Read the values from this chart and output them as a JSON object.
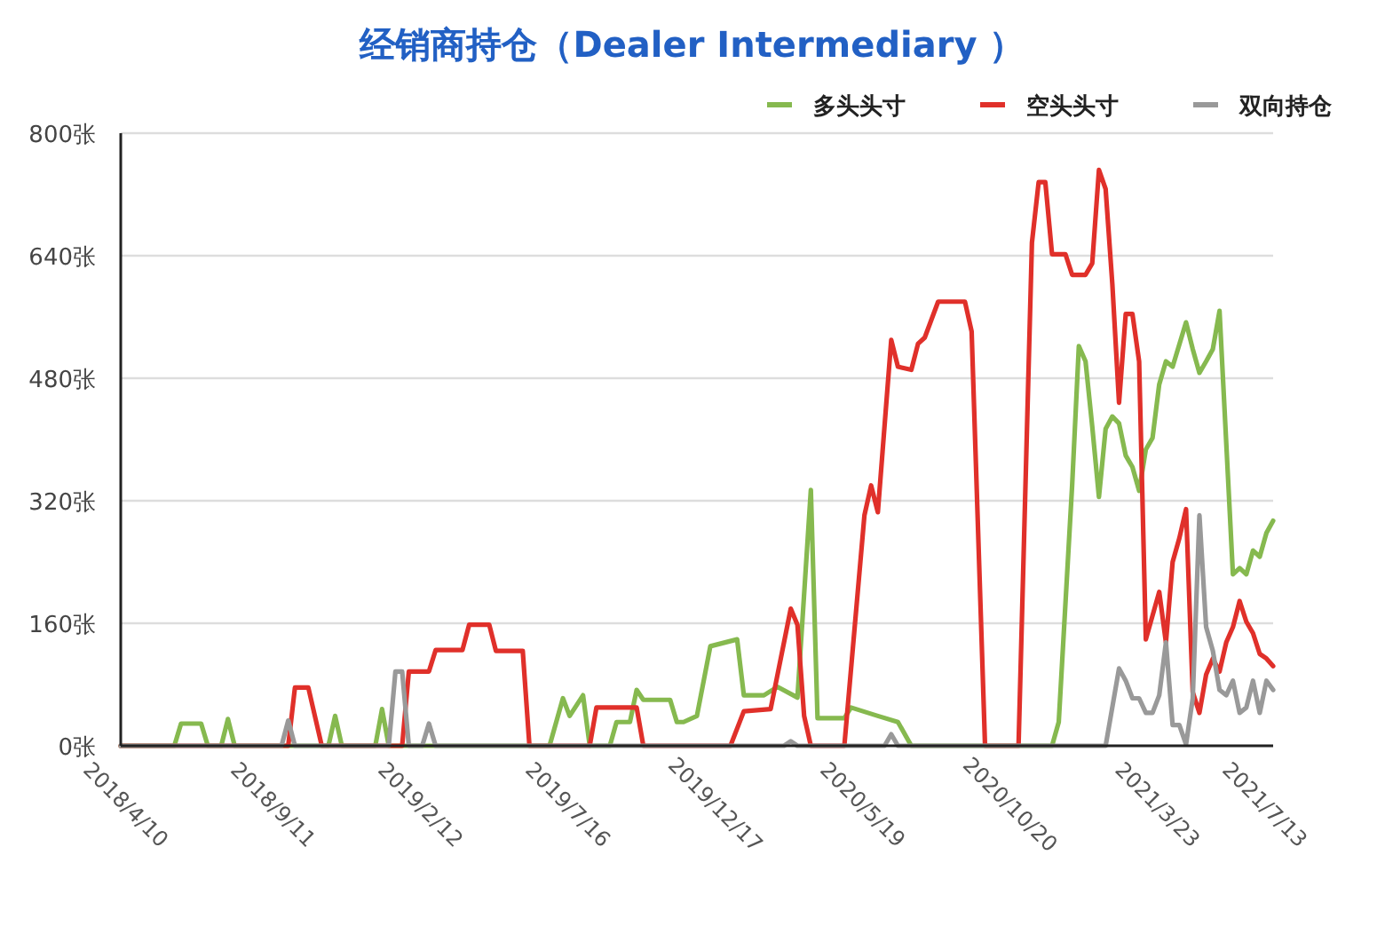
{
  "chart_data": {
    "type": "line",
    "title": "经销商持仓（Dealer Intermediary ）",
    "xlim": [
      "2018-04-10",
      "2021-07-27"
    ],
    "xticks": [
      {
        "value": "2018-04-10",
        "label": "2018/4/10"
      },
      {
        "value": "2018-09-11",
        "label": "2018/9/11"
      },
      {
        "value": "2019-02-12",
        "label": "2019/2/12"
      },
      {
        "value": "2019-07-16",
        "label": "2019/7/16"
      },
      {
        "value": "2019-12-17",
        "label": "2019/12/17"
      },
      {
        "value": "2020-05-19",
        "label": "2020/5/19"
      },
      {
        "value": "2020-10-20",
        "label": "2020/10/20"
      },
      {
        "value": "2021-03-23",
        "label": "2021/3/23"
      },
      {
        "value": "2021-07-13",
        "label": "2021/7/13"
      }
    ],
    "ylim": [
      0,
      800
    ],
    "yticks": [
      {
        "value": 0,
        "label": "0张"
      },
      {
        "value": 160,
        "label": "160张"
      },
      {
        "value": 320,
        "label": "320张"
      },
      {
        "value": 480,
        "label": "480张"
      },
      {
        "value": 640,
        "label": "640张"
      },
      {
        "value": 800,
        "label": "800张"
      }
    ],
    "grid": "y",
    "legend": "top right",
    "series": [
      {
        "name": "多头头寸",
        "color": "#86b94f",
        "x": [
          "2018-04-10",
          "2018-06-05",
          "2018-06-12",
          "2018-07-03",
          "2018-07-10",
          "2018-07-24",
          "2018-07-31",
          "2018-08-07",
          "2018-11-13",
          "2018-11-20",
          "2018-11-27",
          "2019-01-01",
          "2019-01-08",
          "2019-01-15",
          "2019-07-02",
          "2019-07-16",
          "2019-07-23",
          "2019-08-06",
          "2019-08-13",
          "2019-09-03",
          "2019-09-10",
          "2019-09-24",
          "2019-10-01",
          "2019-10-08",
          "2019-11-05",
          "2019-11-12",
          "2019-11-19",
          "2019-12-03",
          "2019-12-17",
          "2020-01-14",
          "2020-01-21",
          "2020-02-11",
          "2020-02-25",
          "2020-03-17",
          "2020-03-31",
          "2020-04-07",
          "2020-05-05",
          "2020-05-12",
          "2020-06-09",
          "2020-06-30",
          "2020-07-14",
          "2020-12-08",
          "2020-12-15",
          "2020-12-29",
          "2021-01-05",
          "2021-01-12",
          "2021-01-19",
          "2021-01-26",
          "2021-02-02",
          "2021-02-09",
          "2021-02-16",
          "2021-02-23",
          "2021-03-02",
          "2021-03-09",
          "2021-03-16",
          "2021-03-23",
          "2021-03-30",
          "2021-04-06",
          "2021-04-13",
          "2021-04-27",
          "2021-05-04",
          "2021-05-11",
          "2021-05-18",
          "2021-05-25",
          "2021-06-01",
          "2021-06-15",
          "2021-06-22",
          "2021-06-29",
          "2021-07-06",
          "2021-07-13",
          "2021-07-20",
          "2021-07-27"
        ],
        "values": [
          0,
          0,
          29,
          29,
          0,
          0,
          35,
          0,
          0,
          39,
          0,
          0,
          48,
          0,
          0,
          62,
          39,
          66,
          0,
          0,
          31,
          31,
          73,
          60,
          60,
          31,
          31,
          39,
          130,
          139,
          66,
          66,
          77,
          63,
          334,
          36,
          36,
          50,
          39,
          31,
          0,
          0,
          31,
          340,
          522,
          502,
          417,
          325,
          414,
          430,
          421,
          379,
          364,
          333,
          387,
          402,
          472,
          502,
          495,
          553,
          518,
          487,
          502,
          518,
          568,
          224,
          232,
          224,
          255,
          247,
          278,
          294
        ]
      },
      {
        "name": "空头头寸",
        "color": "#e0302a",
        "x": [
          "2018-04-10",
          "2018-10-02",
          "2018-10-09",
          "2018-10-23",
          "2018-11-06",
          "2019-01-29",
          "2019-02-05",
          "2019-02-26",
          "2019-03-05",
          "2019-04-02",
          "2019-04-09",
          "2019-04-30",
          "2019-05-07",
          "2019-06-04",
          "2019-06-11",
          "2019-08-13",
          "2019-08-20",
          "2019-10-01",
          "2019-10-08",
          "2020-01-07",
          "2020-01-21",
          "2020-02-18",
          "2020-03-10",
          "2020-03-17",
          "2020-03-24",
          "2020-03-31",
          "2020-05-05",
          "2020-05-26",
          "2020-06-02",
          "2020-06-09",
          "2020-06-23",
          "2020-06-30",
          "2020-07-14",
          "2020-07-21",
          "2020-07-28",
          "2020-08-11",
          "2020-09-08",
          "2020-09-15",
          "2020-09-29",
          "2020-11-03",
          "2020-11-17",
          "2020-11-24",
          "2020-12-01",
          "2020-12-08",
          "2020-12-22",
          "2020-12-29",
          "2021-01-12",
          "2021-01-19",
          "2021-01-26",
          "2021-02-02",
          "2021-02-09",
          "2021-02-16",
          "2021-02-23",
          "2021-03-02",
          "2021-03-09",
          "2021-03-16",
          "2021-03-30",
          "2021-04-06",
          "2021-04-13",
          "2021-04-20",
          "2021-04-27",
          "2021-05-04",
          "2021-05-11",
          "2021-05-18",
          "2021-05-25",
          "2021-06-01",
          "2021-06-08",
          "2021-06-15",
          "2021-06-22",
          "2021-06-29",
          "2021-07-06",
          "2021-07-13",
          "2021-07-20",
          "2021-07-27"
        ],
        "values": [
          0,
          0,
          76,
          76,
          0,
          0,
          97,
          97,
          125,
          125,
          158,
          158,
          124,
          124,
          0,
          0,
          50,
          50,
          0,
          0,
          45,
          48,
          179,
          158,
          39,
          0,
          0,
          301,
          340,
          305,
          530,
          495,
          491,
          525,
          533,
          580,
          580,
          541,
          0,
          0,
          657,
          736,
          736,
          642,
          642,
          615,
          615,
          630,
          752,
          727,
          603,
          448,
          564,
          564,
          502,
          139,
          201,
          135,
          240,
          271,
          309,
          70,
          43,
          93,
          114,
          97,
          135,
          155,
          189,
          162,
          147,
          120,
          114,
          104
        ]
      },
      {
        "name": "双向持仓",
        "color": "#999999",
        "x": [
          "2018-04-10",
          "2018-09-25",
          "2018-10-02",
          "2018-10-09",
          "2019-01-15",
          "2019-01-22",
          "2019-01-29",
          "2019-02-05",
          "2019-02-19",
          "2019-02-26",
          "2019-03-05",
          "2020-03-03",
          "2020-03-10",
          "2020-03-17",
          "2020-06-16",
          "2020-06-23",
          "2020-06-30",
          "2021-02-02",
          "2021-02-16",
          "2021-02-23",
          "2021-03-02",
          "2021-03-09",
          "2021-03-16",
          "2021-03-23",
          "2021-03-30",
          "2021-04-06",
          "2021-04-13",
          "2021-04-20",
          "2021-04-27",
          "2021-05-04",
          "2021-05-11",
          "2021-05-18",
          "2021-05-25",
          "2021-06-01",
          "2021-06-08",
          "2021-06-15",
          "2021-06-22",
          "2021-06-29",
          "2021-07-06",
          "2021-07-13",
          "2021-07-20",
          "2021-07-27"
        ],
        "values": [
          0,
          0,
          33,
          0,
          0,
          97,
          97,
          0,
          0,
          29,
          0,
          0,
          6,
          0,
          0,
          15,
          0,
          0,
          101,
          85,
          62,
          62,
          43,
          43,
          66,
          135,
          27,
          27,
          2,
          62,
          301,
          155,
          124,
          73,
          66,
          85,
          43,
          50,
          85,
          43,
          85,
          73
        ]
      }
    ]
  }
}
